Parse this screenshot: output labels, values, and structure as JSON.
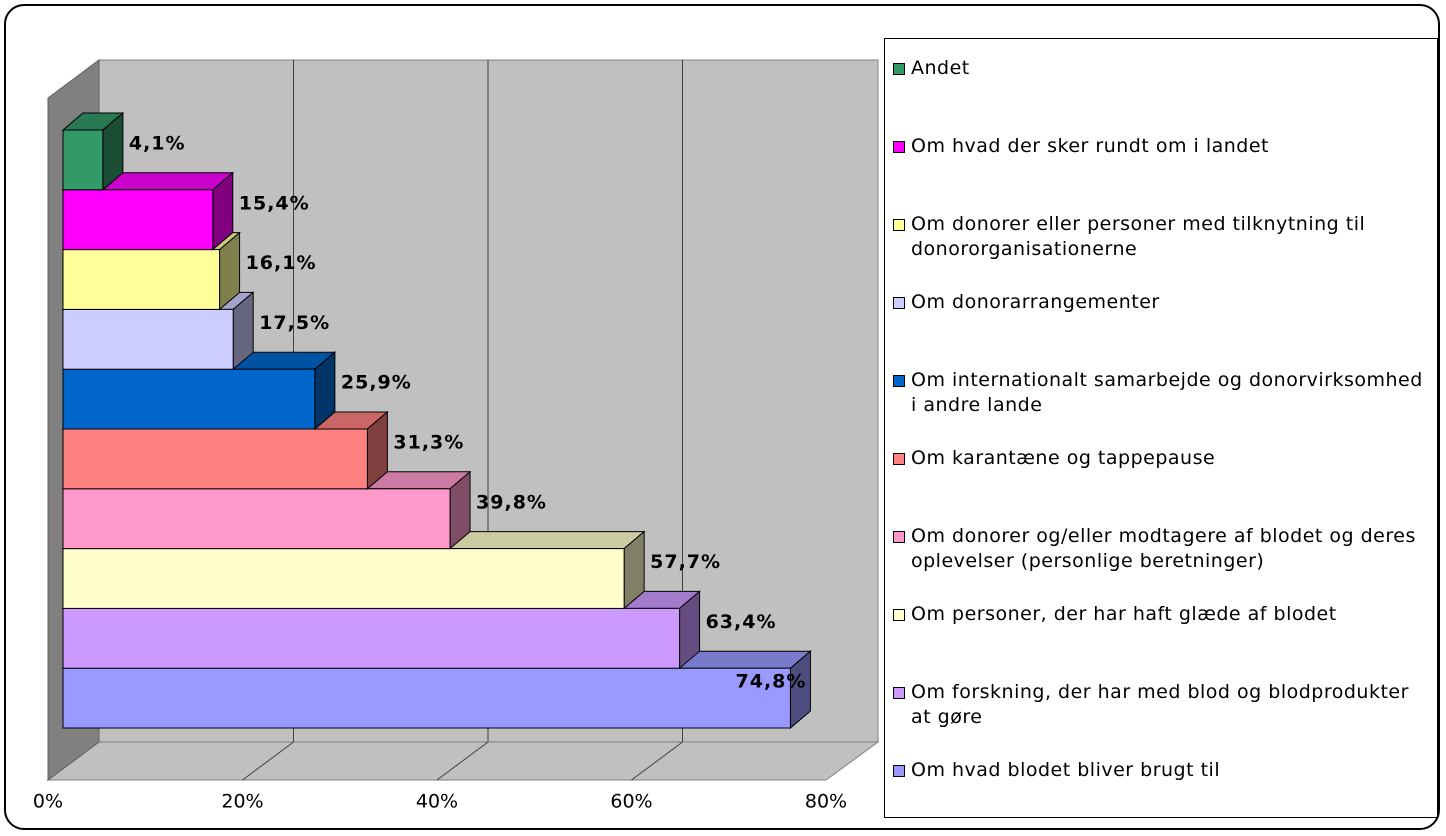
{
  "chart_data": {
    "type": "bar",
    "orientation": "horizontal",
    "categories": [
      "Om hvad blodet bliver brugt til",
      "Om forskning, der har med blod og blodprodukter at gøre",
      "Om personer, der har haft glæde af blodet",
      "Om donorer og/eller modtagere af blodet og deres oplevelser (personlige beretninger)",
      "Om karantæne og tappepause",
      "Om internationalt samarbejde og donorvirksomhed i andre lande",
      "Om donorarrangementer",
      "Om donorer eller personer med tilknytning til donororganisationerne",
      "Om hvad der sker rundt om i landet",
      "Andet"
    ],
    "values": [
      74.8,
      63.4,
      57.7,
      39.8,
      31.3,
      25.9,
      17.5,
      16.1,
      15.4,
      4.1
    ],
    "value_labels": [
      "74,8%",
      "63,4%",
      "57,7%",
      "39,8%",
      "31,3%",
      "25,9%",
      "17,5%",
      "16,1%",
      "15,4%",
      "4,1%"
    ],
    "colors": [
      "#9999ff",
      "#cc99ff",
      "#ffffcc",
      "#ff99cc",
      "#ff8080",
      "#0066cc",
      "#ccccff",
      "#ffff99",
      "#ff00ff",
      "#339966"
    ],
    "xlim": [
      0,
      80
    ],
    "xticks": [
      {
        "value": 0,
        "label": "0%"
      },
      {
        "value": 20,
        "label": "20%"
      },
      {
        "value": 40,
        "label": "40%"
      },
      {
        "value": 60,
        "label": "60%"
      },
      {
        "value": 80,
        "label": "80%"
      }
    ],
    "grid": true,
    "legend": "right"
  }
}
